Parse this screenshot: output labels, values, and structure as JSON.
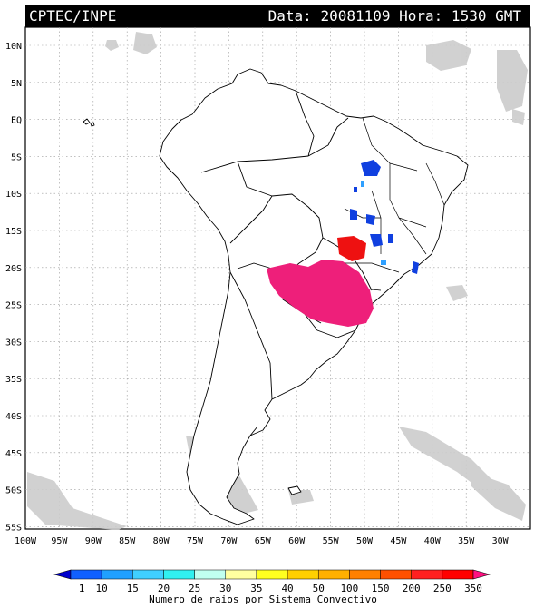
{
  "header": {
    "source": "CPTEC/INPE",
    "meta": "Data: 20081109  Hora: 1530 GMT"
  },
  "map": {
    "lat_labels": [
      "10N",
      "5N",
      "EQ",
      "5S",
      "10S",
      "15S",
      "20S",
      "25S",
      "30S",
      "35S",
      "40S",
      "45S",
      "50S",
      "55S"
    ],
    "lon_labels": [
      "100W",
      "95W",
      "90W",
      "85W",
      "80W",
      "75W",
      "70W",
      "65W",
      "60W",
      "55W",
      "50W",
      "45W",
      "40W",
      "35W",
      "30W"
    ],
    "colors": {
      "land": "#ffffff",
      "coast": "#000000",
      "grid": "#9a9a9a",
      "cloud": "#c8c8c8",
      "system_pink": "#ee1f7a",
      "system_red": "#ee1111",
      "system_blue": "#1040e0",
      "system_cyan": "#2fa0ff"
    }
  },
  "legend": {
    "ticks": [
      "1",
      "10",
      "15",
      "20",
      "25",
      "30",
      "35",
      "40",
      "50",
      "100",
      "150",
      "200",
      "250",
      "350"
    ],
    "colors": [
      "#0000cc",
      "#1060ff",
      "#20a0ff",
      "#40d0ff",
      "#30f0f0",
      "#c0fff0",
      "#ffffa0",
      "#ffff20",
      "#ffd000",
      "#ffb000",
      "#ff8000",
      "#ff5000",
      "#ff2020",
      "#ff0000",
      "#ff1080"
    ],
    "title": "Numero de raios por Sistema Convectivo"
  }
}
